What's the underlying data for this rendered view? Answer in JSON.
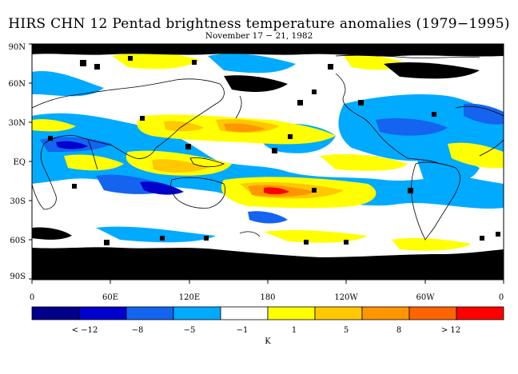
{
  "title": "HIRS CHN 12 Pentad brightness temperature anomalies (1979−1995)",
  "subtitle": "November 17 − 21, 1982",
  "map": {
    "lat_labels": [
      "90N",
      "60N",
      "30N",
      "EQ",
      "30S",
      "60S",
      "90S"
    ],
    "lon_labels": [
      "0",
      "60E",
      "120E",
      "180",
      "120W",
      "60W",
      "0"
    ]
  },
  "colorbar": {
    "unit": "K",
    "colors": [
      "#00008b",
      "#0000cd",
      "#1464f0",
      "#00aaff",
      "#ffffff",
      "#ffff00",
      "#ffc800",
      "#ff9600",
      "#ff6400",
      "#ff0000"
    ],
    "tick_labels": [
      "< −12",
      "−8",
      "−5",
      "−1",
      "1",
      "5",
      "8",
      "> 12"
    ]
  },
  "colors": {
    "missing_data": "#000000",
    "coastline": "#000000"
  }
}
